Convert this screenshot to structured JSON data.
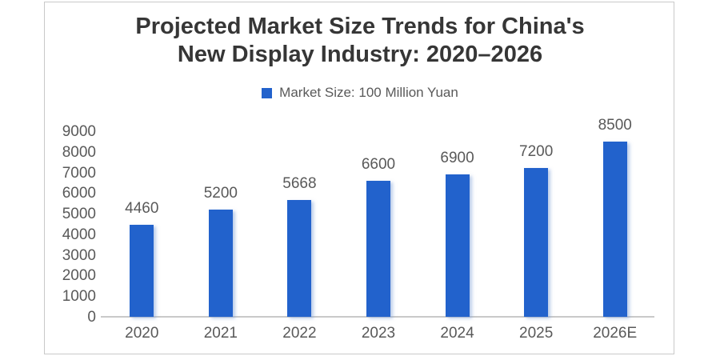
{
  "chart": {
    "title_display": "Projected Market Size Trends for China's\nNew Display Industry: 2020–2026",
    "legend_label": "Market Size: 100 Million Yuan"
  },
  "chart_data": {
    "type": "bar",
    "title": "Projected Market Size Trends for China's New Display Industry: 2020–2026",
    "legend": [
      "Market Size: 100 Million Yuan"
    ],
    "legend_position": "top",
    "categories": [
      "2020",
      "2021",
      "2022",
      "2023",
      "2024",
      "2025",
      "2026E"
    ],
    "values": [
      4460,
      5200,
      5668,
      6600,
      6900,
      7200,
      8500
    ],
    "xlabel": "",
    "ylabel": "",
    "ylim": [
      0,
      9000
    ],
    "ytick_step": 1000,
    "grid": false,
    "bar_color": "#2262cc",
    "text_color": "#595959",
    "title_color": "#363636",
    "axis_line_color": "#c9c9c9"
  }
}
